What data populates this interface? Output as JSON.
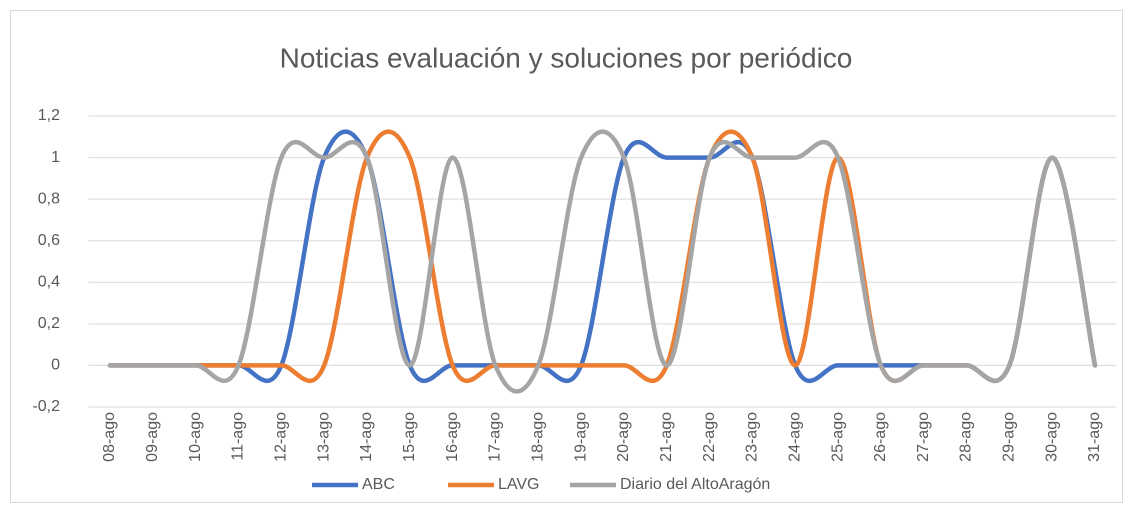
{
  "chart_data": {
    "type": "line",
    "title": "Noticias evaluación y soluciones por periódico",
    "categories": [
      "08-ago",
      "09-ago",
      "10-ago",
      "11-ago",
      "12-ago",
      "13-ago",
      "14-ago",
      "15-ago",
      "16-ago",
      "17-ago",
      "18-ago",
      "19-ago",
      "20-ago",
      "21-ago",
      "22-ago",
      "23-ago",
      "24-ago",
      "25-ago",
      "26-ago",
      "27-ago",
      "28-ago",
      "29-ago",
      "30-ago",
      "31-ago"
    ],
    "series": [
      {
        "name": "ABC",
        "color": "#4472c4",
        "values": [
          0,
          0,
          0,
          0,
          0,
          1,
          1,
          0,
          0,
          0,
          0,
          0,
          1,
          1,
          1,
          1,
          0,
          0,
          0,
          0,
          0,
          0,
          1,
          0
        ]
      },
      {
        "name": "LAVG",
        "color": "#ed7d31",
        "values": [
          0,
          0,
          0,
          0,
          0,
          0,
          1,
          1,
          0,
          0,
          0,
          0,
          0,
          0,
          1,
          1,
          0,
          1,
          0,
          0,
          0,
          0,
          1,
          0
        ]
      },
      {
        "name": "Diario del AltoAragón",
        "color": "#a5a5a5",
        "values": [
          0,
          0,
          0,
          0,
          1,
          1,
          1,
          0,
          1,
          0,
          0,
          1,
          1,
          0,
          1,
          1,
          1,
          1,
          0,
          0,
          0,
          0,
          1,
          0
        ]
      }
    ],
    "ylim": [
      -0.2,
      1.2
    ],
    "yticks": [
      {
        "value": -0.2,
        "label": "-0,2"
      },
      0,
      {
        "value": 0.2,
        "label": "0,2"
      },
      {
        "value": 0.4,
        "label": "0,4"
      },
      {
        "value": 0.6,
        "label": "0,6"
      },
      {
        "value": 0.8,
        "label": "0,8"
      },
      1,
      {
        "value": 1.2,
        "label": "1,2"
      }
    ],
    "grid": true,
    "smooth": true,
    "legend": "bottom"
  }
}
